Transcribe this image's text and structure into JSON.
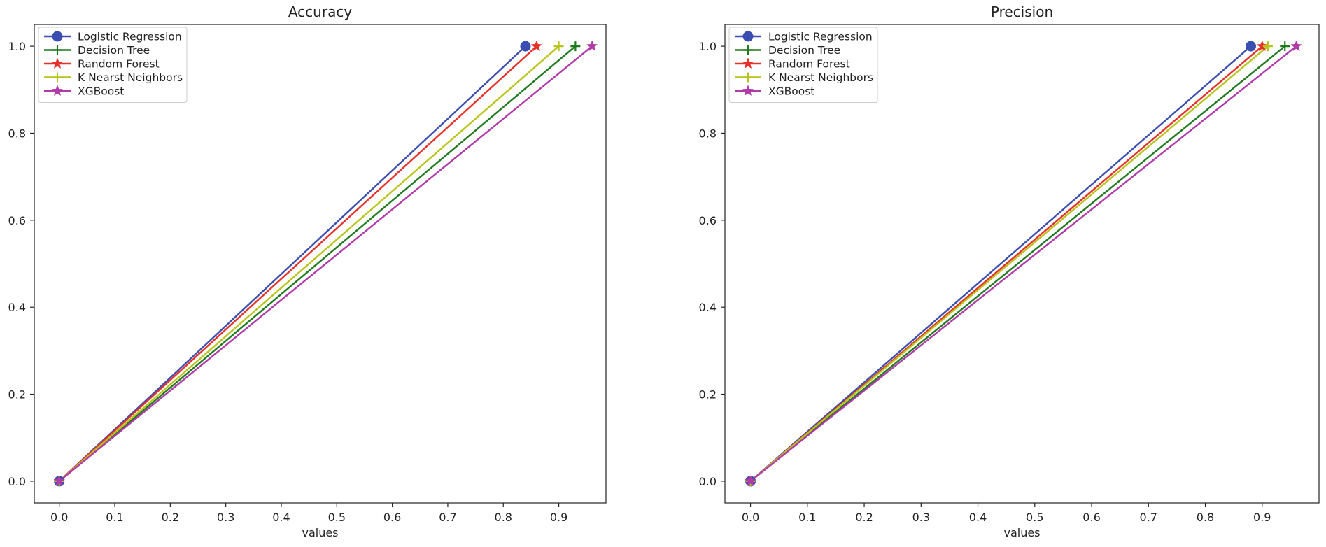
{
  "chart_data": [
    {
      "type": "line",
      "title": "Accuracy",
      "xlabel": "values",
      "ylabel": "",
      "xlim": [
        -0.045,
        0.985
      ],
      "ylim": [
        -0.05,
        1.05
      ],
      "xticks": [
        0.0,
        0.1,
        0.2,
        0.3,
        0.4,
        0.5,
        0.6,
        0.7,
        0.8,
        0.9
      ],
      "xtick_labels": [
        "0.0",
        "0.1",
        "0.2",
        "0.3",
        "0.4",
        "0.5",
        "0.6",
        "0.7",
        "0.8",
        "0.9"
      ],
      "yticks": [
        0.0,
        0.2,
        0.4,
        0.6,
        0.8,
        1.0
      ],
      "ytick_labels": [
        "0.0",
        "0.2",
        "0.4",
        "0.6",
        "0.8",
        "1.0"
      ],
      "grid": false,
      "legend_position": "top-left",
      "series": [
        {
          "name": "Logistic Regression",
          "x": [
            0.0,
            0.84
          ],
          "y": [
            0.0,
            1.0
          ],
          "color": "#3a4db0",
          "marker": "circle"
        },
        {
          "name": "Decision Tree",
          "x": [
            0.0,
            0.93
          ],
          "y": [
            0.0,
            1.0
          ],
          "color": "#1f7a1f",
          "marker": "plus"
        },
        {
          "name": "Random Forest",
          "x": [
            0.0,
            0.86
          ],
          "y": [
            0.0,
            1.0
          ],
          "color": "#e8302a",
          "marker": "star"
        },
        {
          "name": "K Nearst Neighbors",
          "x": [
            0.0,
            0.9
          ],
          "y": [
            0.0,
            1.0
          ],
          "color": "#b9c41a",
          "marker": "plus"
        },
        {
          "name": "XGBoost",
          "x": [
            0.0,
            0.96
          ],
          "y": [
            0.0,
            1.0
          ],
          "color": "#b03aaa",
          "marker": "star"
        }
      ]
    },
    {
      "type": "line",
      "title": "Precision",
      "xlabel": "values",
      "ylabel": "",
      "xlim": [
        -0.045,
        1.0
      ],
      "ylim": [
        -0.05,
        1.05
      ],
      "xticks": [
        0.0,
        0.1,
        0.2,
        0.3,
        0.4,
        0.5,
        0.6,
        0.7,
        0.8,
        0.9
      ],
      "xtick_labels": [
        "0.0",
        "0.1",
        "0.2",
        "0.3",
        "0.4",
        "0.5",
        "0.6",
        "0.7",
        "0.8",
        "0.9"
      ],
      "yticks": [
        0.0,
        0.2,
        0.4,
        0.6,
        0.8,
        1.0
      ],
      "ytick_labels": [
        "0.0",
        "0.2",
        "0.4",
        "0.6",
        "0.8",
        "1.0"
      ],
      "grid": false,
      "legend_position": "top-left",
      "series": [
        {
          "name": "Logistic Regression",
          "x": [
            0.0,
            0.88
          ],
          "y": [
            0.0,
            1.0
          ],
          "color": "#3a4db0",
          "marker": "circle"
        },
        {
          "name": "Decision Tree",
          "x": [
            0.0,
            0.94
          ],
          "y": [
            0.0,
            1.0
          ],
          "color": "#1f7a1f",
          "marker": "plus"
        },
        {
          "name": "Random Forest",
          "x": [
            0.0,
            0.9
          ],
          "y": [
            0.0,
            1.0
          ],
          "color": "#e8302a",
          "marker": "star"
        },
        {
          "name": "K Nearst Neighbors",
          "x": [
            0.0,
            0.91
          ],
          "y": [
            0.0,
            1.0
          ],
          "color": "#b9c41a",
          "marker": "plus"
        },
        {
          "name": "XGBoost",
          "x": [
            0.0,
            0.96
          ],
          "y": [
            0.0,
            1.0
          ],
          "color": "#b03aaa",
          "marker": "star"
        }
      ]
    }
  ]
}
